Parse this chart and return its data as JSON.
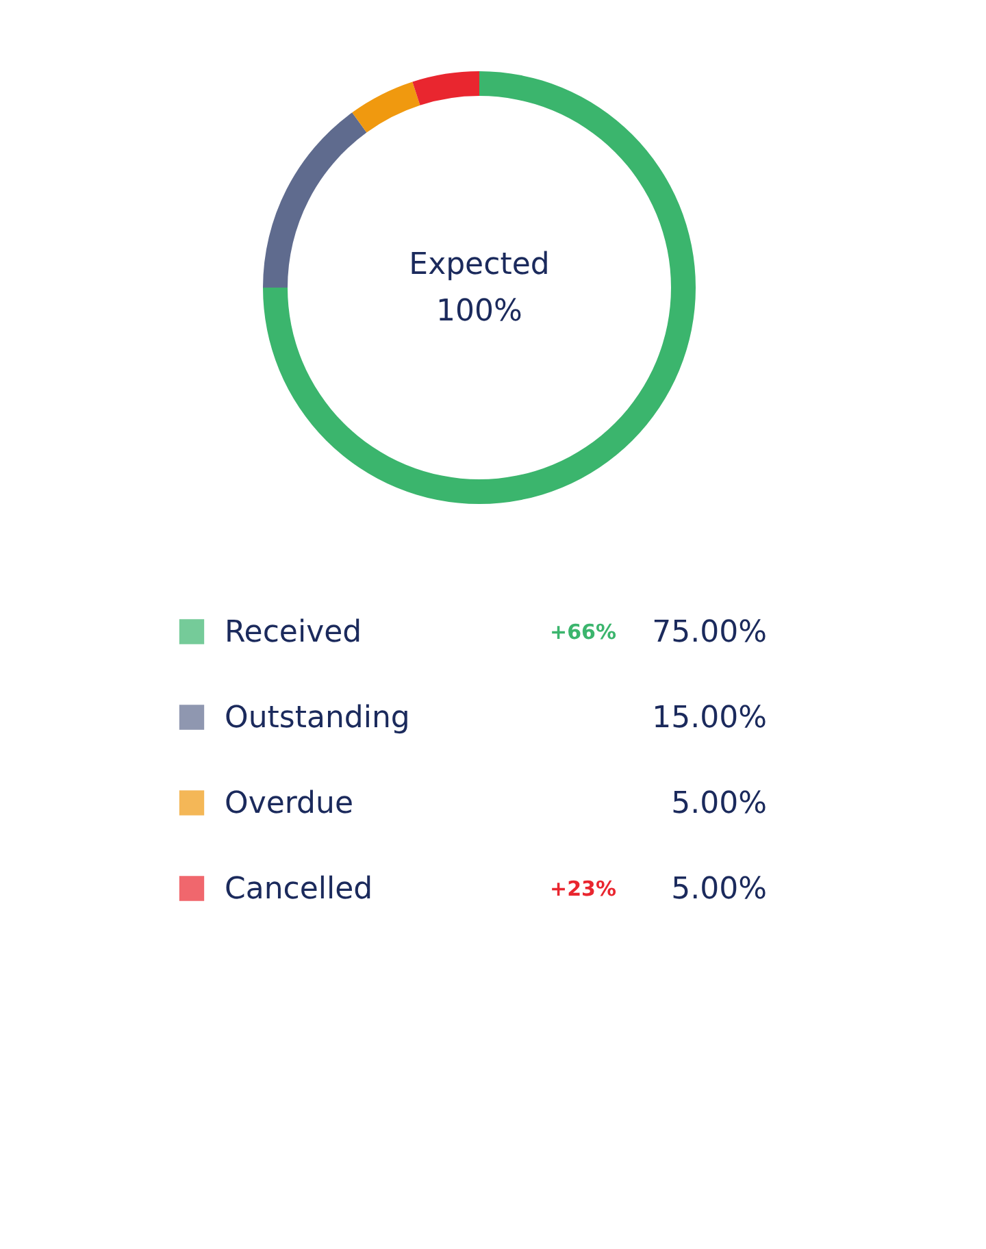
{
  "chart_data": {
    "type": "donut",
    "categories": [
      "Received",
      "Outstanding",
      "Overdue",
      "Cancelled"
    ],
    "values": [
      75,
      15,
      5,
      5
    ],
    "colors": [
      "#3bb56d",
      "#5f6b8e",
      "#f0990f",
      "#e9262f"
    ],
    "value_labels": [
      "75.00%",
      "15.00%",
      "5.00%",
      "5.00%"
    ],
    "annotations": [
      "Expected\n100%",
      {
        "text": "+66%",
        "x": "Received"
      },
      {
        "text": "+23%",
        "x": "Cancelled"
      }
    ],
    "legend": "bottom"
  }
}
